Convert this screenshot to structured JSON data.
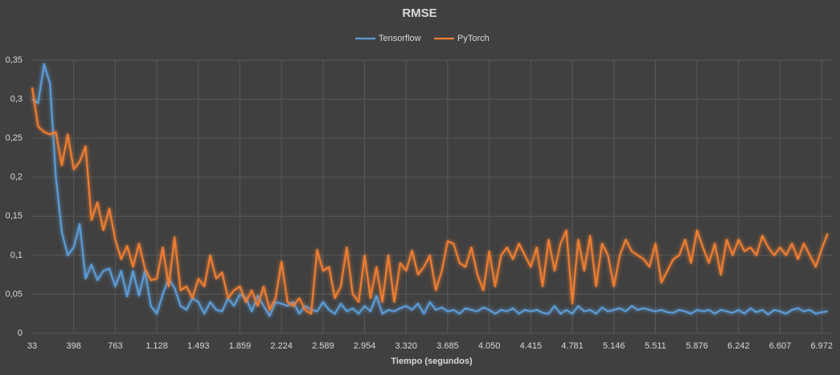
{
  "chart_data": {
    "type": "line",
    "title": "RMSE",
    "x_label": "Tiempo (segundos)",
    "categories": [
      "33",
      null,
      null,
      null,
      null,
      null,
      null,
      "398",
      null,
      null,
      null,
      null,
      null,
      null,
      "763",
      null,
      null,
      null,
      null,
      null,
      null,
      "1.128",
      null,
      null,
      null,
      null,
      null,
      null,
      "1.493",
      null,
      null,
      null,
      null,
      null,
      null,
      "1.859",
      null,
      null,
      null,
      null,
      null,
      null,
      "2.224",
      null,
      null,
      null,
      null,
      null,
      null,
      "2.589",
      null,
      null,
      null,
      null,
      null,
      null,
      "2.954",
      null,
      null,
      null,
      null,
      null,
      null,
      "3.320",
      null,
      null,
      null,
      null,
      null,
      null,
      "3.685",
      null,
      null,
      null,
      null,
      null,
      null,
      "4.050",
      null,
      null,
      null,
      null,
      null,
      null,
      "4.415",
      null,
      null,
      null,
      null,
      null,
      null,
      "4.781",
      null,
      null,
      null,
      null,
      null,
      null,
      "5.146",
      null,
      null,
      null,
      null,
      null,
      null,
      "5.511",
      null,
      null,
      null,
      null,
      null,
      null,
      "5.876",
      null,
      null,
      null,
      null,
      null,
      null,
      "6.242",
      null,
      null,
      null,
      null,
      null,
      null,
      "6.607",
      null,
      null,
      null,
      null,
      null,
      null,
      "6.972",
      null
    ],
    "series": [
      {
        "name": "Tensorflow",
        "color": "#5b9bd5",
        "values": [
          0.3,
          0.295,
          0.345,
          0.32,
          0.2,
          0.13,
          0.1,
          0.11,
          0.14,
          0.07,
          0.088,
          0.068,
          0.08,
          0.083,
          0.06,
          0.08,
          0.047,
          0.08,
          0.048,
          0.08,
          0.035,
          0.025,
          0.05,
          0.07,
          0.058,
          0.035,
          0.03,
          0.045,
          0.04,
          0.025,
          0.04,
          0.03,
          0.028,
          0.045,
          0.035,
          0.05,
          0.045,
          0.028,
          0.048,
          0.035,
          0.022,
          0.04,
          0.038,
          0.035,
          0.04,
          0.025,
          0.035,
          0.03,
          0.028,
          0.04,
          0.03,
          0.025,
          0.038,
          0.028,
          0.032,
          0.025,
          0.035,
          0.028,
          0.048,
          0.025,
          0.03,
          0.028,
          0.032,
          0.035,
          0.03,
          0.038,
          0.025,
          0.04,
          0.03,
          0.033,
          0.028,
          0.03,
          0.025,
          0.032,
          0.03,
          0.028,
          0.033,
          0.03,
          0.025,
          0.03,
          0.028,
          0.032,
          0.025,
          0.03,
          0.028,
          0.03,
          0.026,
          0.025,
          0.035,
          0.025,
          0.03,
          0.025,
          0.035,
          0.028,
          0.03,
          0.025,
          0.033,
          0.028,
          0.03,
          0.032,
          0.028,
          0.035,
          0.03,
          0.032,
          0.03,
          0.028,
          0.03,
          0.027,
          0.026,
          0.03,
          0.028,
          0.025,
          0.03,
          0.028,
          0.03,
          0.025,
          0.03,
          0.028,
          0.026,
          0.03,
          0.025,
          0.032,
          0.027,
          0.03,
          0.024,
          0.03,
          0.028,
          0.025,
          0.03,
          0.032,
          0.028,
          0.03,
          0.025,
          0.027,
          0.028
        ]
      },
      {
        "name": "PyTorch",
        "color": "#ed7d31",
        "values": [
          0.315,
          0.265,
          0.258,
          0.255,
          0.258,
          0.215,
          0.255,
          0.21,
          0.22,
          0.24,
          0.145,
          0.168,
          0.132,
          0.16,
          0.12,
          0.095,
          0.112,
          0.085,
          0.115,
          0.083,
          0.068,
          0.07,
          0.11,
          0.06,
          0.123,
          0.055,
          0.06,
          0.045,
          0.07,
          0.06,
          0.1,
          0.07,
          0.078,
          0.045,
          0.055,
          0.06,
          0.04,
          0.055,
          0.035,
          0.06,
          0.03,
          0.045,
          0.092,
          0.04,
          0.035,
          0.045,
          0.03,
          0.025,
          0.107,
          0.08,
          0.085,
          0.045,
          0.06,
          0.11,
          0.05,
          0.04,
          0.1,
          0.045,
          0.085,
          0.04,
          0.1,
          0.04,
          0.09,
          0.08,
          0.106,
          0.075,
          0.085,
          0.1,
          0.055,
          0.08,
          0.118,
          0.115,
          0.09,
          0.085,
          0.11,
          0.075,
          0.055,
          0.105,
          0.06,
          0.1,
          0.11,
          0.095,
          0.115,
          0.1,
          0.085,
          0.11,
          0.06,
          0.12,
          0.08,
          0.115,
          0.132,
          0.038,
          0.12,
          0.08,
          0.125,
          0.06,
          0.115,
          0.1,
          0.06,
          0.1,
          0.12,
          0.105,
          0.1,
          0.095,
          0.085,
          0.115,
          0.065,
          0.08,
          0.095,
          0.1,
          0.12,
          0.09,
          0.132,
          0.11,
          0.09,
          0.115,
          0.075,
          0.12,
          0.1,
          0.12,
          0.105,
          0.11,
          0.1,
          0.125,
          0.11,
          0.1,
          0.11,
          0.1,
          0.115,
          0.095,
          0.115,
          0.1,
          0.085,
          0.108,
          0.128
        ]
      }
    ],
    "ylim": [
      0,
      0.35
    ],
    "yticks": [
      0,
      {
        "value": 0.05,
        "label": "0,05"
      },
      {
        "value": 0.1,
        "label": "0,1"
      },
      {
        "value": 0.15,
        "label": "0,15"
      },
      {
        "value": 0.2,
        "label": "0,2"
      },
      {
        "value": 0.25,
        "label": "0,25"
      },
      {
        "value": 0.3,
        "label": "0,3"
      },
      {
        "value": 0.35,
        "label": "0,35"
      }
    ],
    "grid": true,
    "legend": "top"
  }
}
